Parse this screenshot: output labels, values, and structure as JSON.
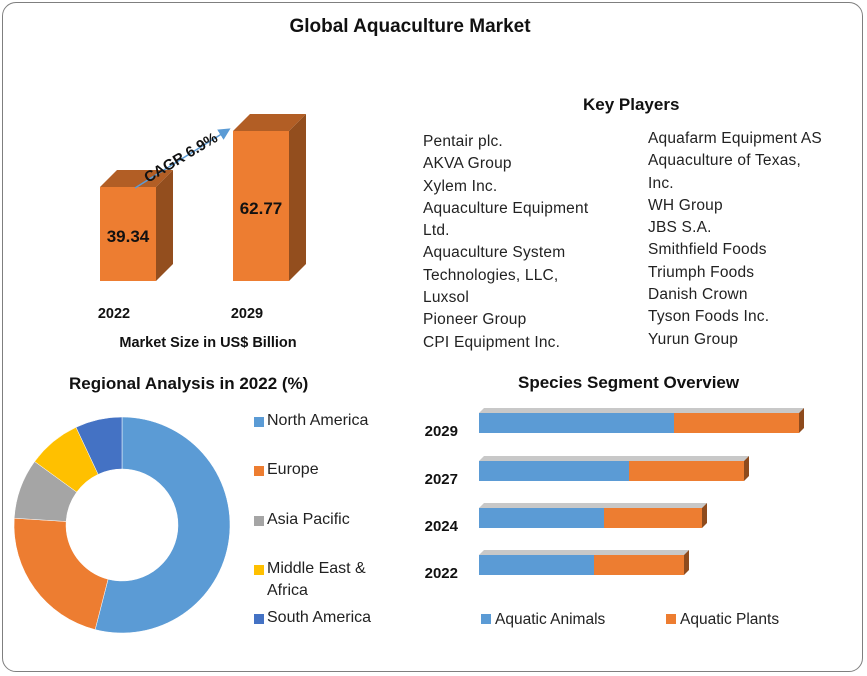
{
  "title": "Global Aquaculture Market",
  "market_size": {
    "caption": "Market Size in US$ Billion",
    "cagr_label": "CAGR 6.9%",
    "bars": [
      {
        "year": "2022",
        "value": 39.34,
        "label": "39.34"
      },
      {
        "year": "2029",
        "value": 62.77,
        "label": "62.77"
      }
    ]
  },
  "key_players": {
    "title": "Key Players",
    "left_column": [
      "Pentair plc.",
      "AKVA Group",
      "Xylem Inc.",
      "Aquaculture  Equipment",
      "Ltd.",
      "Aquaculture  System",
      "Technologies, LLC,",
      "Luxsol",
      "Pioneer Group",
      "CPI Equipment  Inc."
    ],
    "right_column": [
      "Aquafarm Equipment  AS",
      "Aquaculture  of Texas,",
      "Inc.",
      "WH Group",
      "JBS S.A.",
      "Smithfield  Foods",
      "Triumph  Foods",
      "Danish Crown",
      "Tyson Foods Inc.",
      "Yurun Group"
    ]
  },
  "regional": {
    "title": "Regional Analysis in 2022 (%)",
    "legend": [
      "North America",
      "Europe",
      "Asia Pacific",
      "Middle East &",
      "Africa",
      "South America"
    ]
  },
  "species": {
    "title": "Species  Segment Overview",
    "legend": [
      "Aquatic Animals",
      "Aquatic Plants"
    ]
  },
  "colors": {
    "blue": "#5b9bd5",
    "orange": "#ed7d31",
    "gray": "#a5a5a5",
    "yellow": "#ffc000",
    "dark_blue": "#4472c4"
  },
  "chart_data": [
    {
      "type": "bar",
      "title": "Market Size in US$ Billion",
      "categories": [
        "2022",
        "2029"
      ],
      "values": [
        39.34,
        62.77
      ],
      "annotation": "CAGR 6.9%",
      "ylim": [
        0,
        70
      ]
    },
    {
      "type": "pie",
      "variant": "donut",
      "title": "Regional Analysis in 2022 (%)",
      "labels": [
        "North America",
        "Europe",
        "Asia Pacific",
        "Middle East & Africa",
        "South America"
      ],
      "values": [
        54,
        22,
        9,
        8,
        7
      ]
    },
    {
      "type": "bar",
      "orientation": "horizontal",
      "stacked": true,
      "title": "Species  Segment Overview",
      "categories": [
        "2029",
        "2027",
        "2024",
        "2022"
      ],
      "series": [
        {
          "name": "Aquatic Animals",
          "values": [
            195,
            150,
            125,
            115
          ]
        },
        {
          "name": "Aquatic Plants",
          "values": [
            125,
            115,
            98,
            90
          ]
        }
      ]
    }
  ]
}
